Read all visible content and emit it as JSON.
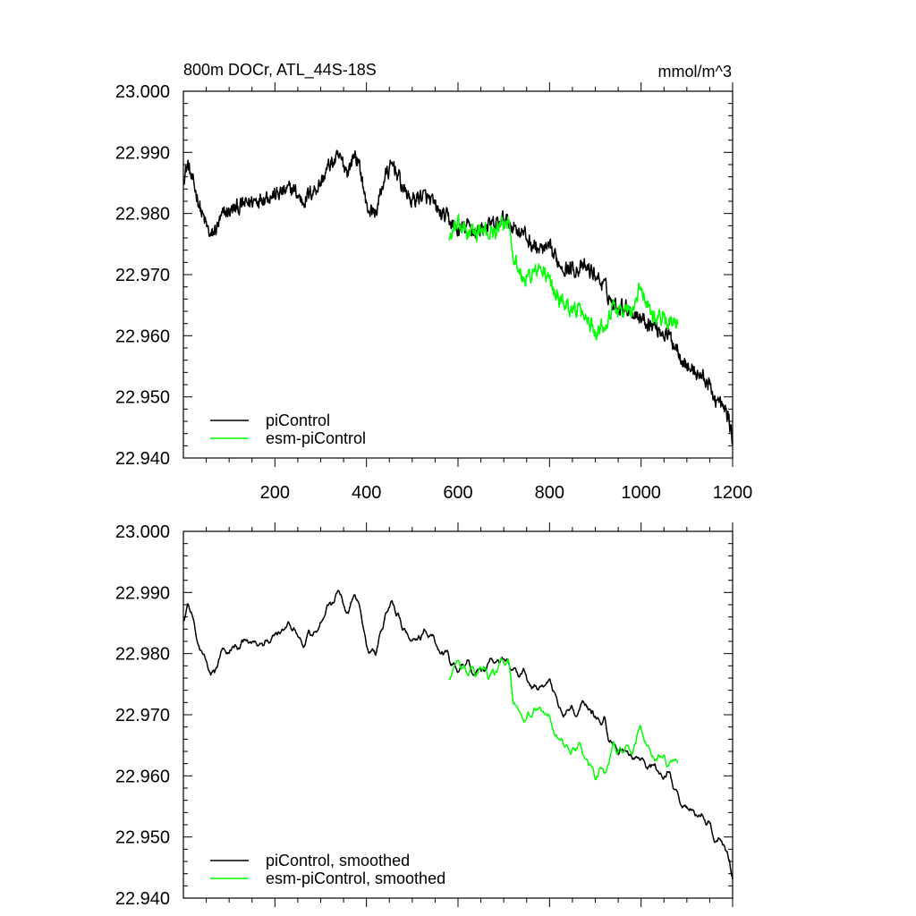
{
  "chart_data": [
    {
      "type": "line",
      "title_left": "800m DOCr, ATL_44S-18S",
      "title_right": "mmol/m^3",
      "xlim": [
        0,
        1200
      ],
      "ylim": [
        22.94,
        23.0
      ],
      "x_ticks": [
        200,
        400,
        600,
        800,
        1000,
        1200
      ],
      "x_tick_labels": [
        "200",
        "400",
        "600",
        "800",
        "1000",
        "1200"
      ],
      "y_ticks": [
        22.94,
        22.95,
        22.96,
        22.97,
        22.98,
        22.99,
        23.0
      ],
      "y_tick_labels": [
        "22.940",
        "22.950",
        "22.960",
        "22.970",
        "22.980",
        "22.990",
        "23.000"
      ],
      "legend_position": "bottom-left",
      "series": [
        {
          "name": "piControl",
          "color": "#000000",
          "x_start": 1,
          "x_end": 1200,
          "anchors": [
            [
              0,
              22.986
            ],
            [
              10,
              22.988
            ],
            [
              20,
              22.985
            ],
            [
              30,
              22.983
            ],
            [
              40,
              22.98
            ],
            [
              60,
              22.976
            ],
            [
              90,
              22.98
            ],
            [
              120,
              22.981
            ],
            [
              150,
              22.982
            ],
            [
              180,
              22.983
            ],
            [
              200,
              22.983
            ],
            [
              240,
              22.984
            ],
            [
              260,
              22.982
            ],
            [
              300,
              22.985
            ],
            [
              320,
              22.988
            ],
            [
              340,
              22.989
            ],
            [
              360,
              22.987
            ],
            [
              375,
              22.99
            ],
            [
              390,
              22.986
            ],
            [
              400,
              22.981
            ],
            [
              420,
              22.98
            ],
            [
              440,
              22.986
            ],
            [
              460,
              22.988
            ],
            [
              480,
              22.984
            ],
            [
              500,
              22.982
            ],
            [
              520,
              22.983
            ],
            [
              540,
              22.982
            ],
            [
              560,
              22.98
            ],
            [
              580,
              22.979
            ],
            [
              600,
              22.977
            ],
            [
              620,
              22.978
            ],
            [
              640,
              22.977
            ],
            [
              660,
              22.978
            ],
            [
              680,
              22.978
            ],
            [
              700,
              22.979
            ],
            [
              720,
              22.978
            ],
            [
              740,
              22.977
            ],
            [
              760,
              22.975
            ],
            [
              780,
              22.974
            ],
            [
              800,
              22.974
            ],
            [
              820,
              22.972
            ],
            [
              840,
              22.971
            ],
            [
              860,
              22.971
            ],
            [
              880,
              22.971
            ],
            [
              900,
              22.97
            ],
            [
              920,
              22.968
            ],
            [
              940,
              22.965
            ],
            [
              960,
              22.965
            ],
            [
              980,
              22.964
            ],
            [
              1000,
              22.963
            ],
            [
              1020,
              22.962
            ],
            [
              1040,
              22.961
            ],
            [
              1060,
              22.96
            ],
            [
              1080,
              22.958
            ],
            [
              1100,
              22.955
            ],
            [
              1120,
              22.954
            ],
            [
              1140,
              22.953
            ],
            [
              1160,
              22.95
            ],
            [
              1180,
              22.948
            ],
            [
              1190,
              22.947
            ],
            [
              1200,
              22.943
            ]
          ],
          "noise_amplitude": 0.0018,
          "smoothed_noise_amplitude": 0.0008
        },
        {
          "name": "esm-piControl",
          "color": "#00ff00",
          "x_start": 580,
          "x_end": 1080,
          "anchors": [
            [
              580,
              22.976
            ],
            [
              600,
              22.978
            ],
            [
              620,
              22.977
            ],
            [
              640,
              22.977
            ],
            [
              660,
              22.977
            ],
            [
              680,
              22.977
            ],
            [
              700,
              22.978
            ],
            [
              710,
              22.979
            ],
            [
              720,
              22.974
            ],
            [
              740,
              22.969
            ],
            [
              760,
              22.97
            ],
            [
              780,
              22.971
            ],
            [
              800,
              22.969
            ],
            [
              820,
              22.966
            ],
            [
              840,
              22.965
            ],
            [
              860,
              22.964
            ],
            [
              880,
              22.963
            ],
            [
              900,
              22.961
            ],
            [
              920,
              22.962
            ],
            [
              940,
              22.965
            ],
            [
              960,
              22.964
            ],
            [
              980,
              22.964
            ],
            [
              1000,
              22.968
            ],
            [
              1010,
              22.966
            ],
            [
              1030,
              22.963
            ],
            [
              1050,
              22.963
            ],
            [
              1070,
              22.962
            ],
            [
              1080,
              22.961
            ]
          ],
          "noise_amplitude": 0.0018,
          "smoothed_noise_amplitude": 0.0008
        }
      ],
      "legend": [
        "piControl",
        "esm-piControl"
      ]
    },
    {
      "type": "line",
      "xlim": [
        0,
        1200
      ],
      "ylim": [
        22.94,
        23.0
      ],
      "x_ticks": [
        200,
        400,
        600,
        800,
        1000,
        1200
      ],
      "y_ticks": [
        22.94,
        22.95,
        22.96,
        22.97,
        22.98,
        22.99,
        23.0
      ],
      "y_tick_labels": [
        "22.940",
        "22.950",
        "22.960",
        "22.970",
        "22.980",
        "22.990",
        "23.000"
      ],
      "legend_position": "bottom-left",
      "series_ref": "smoothed versions of upper panel series",
      "legend": [
        "piControl, smoothed",
        "esm-piControl, smoothed"
      ]
    }
  ]
}
